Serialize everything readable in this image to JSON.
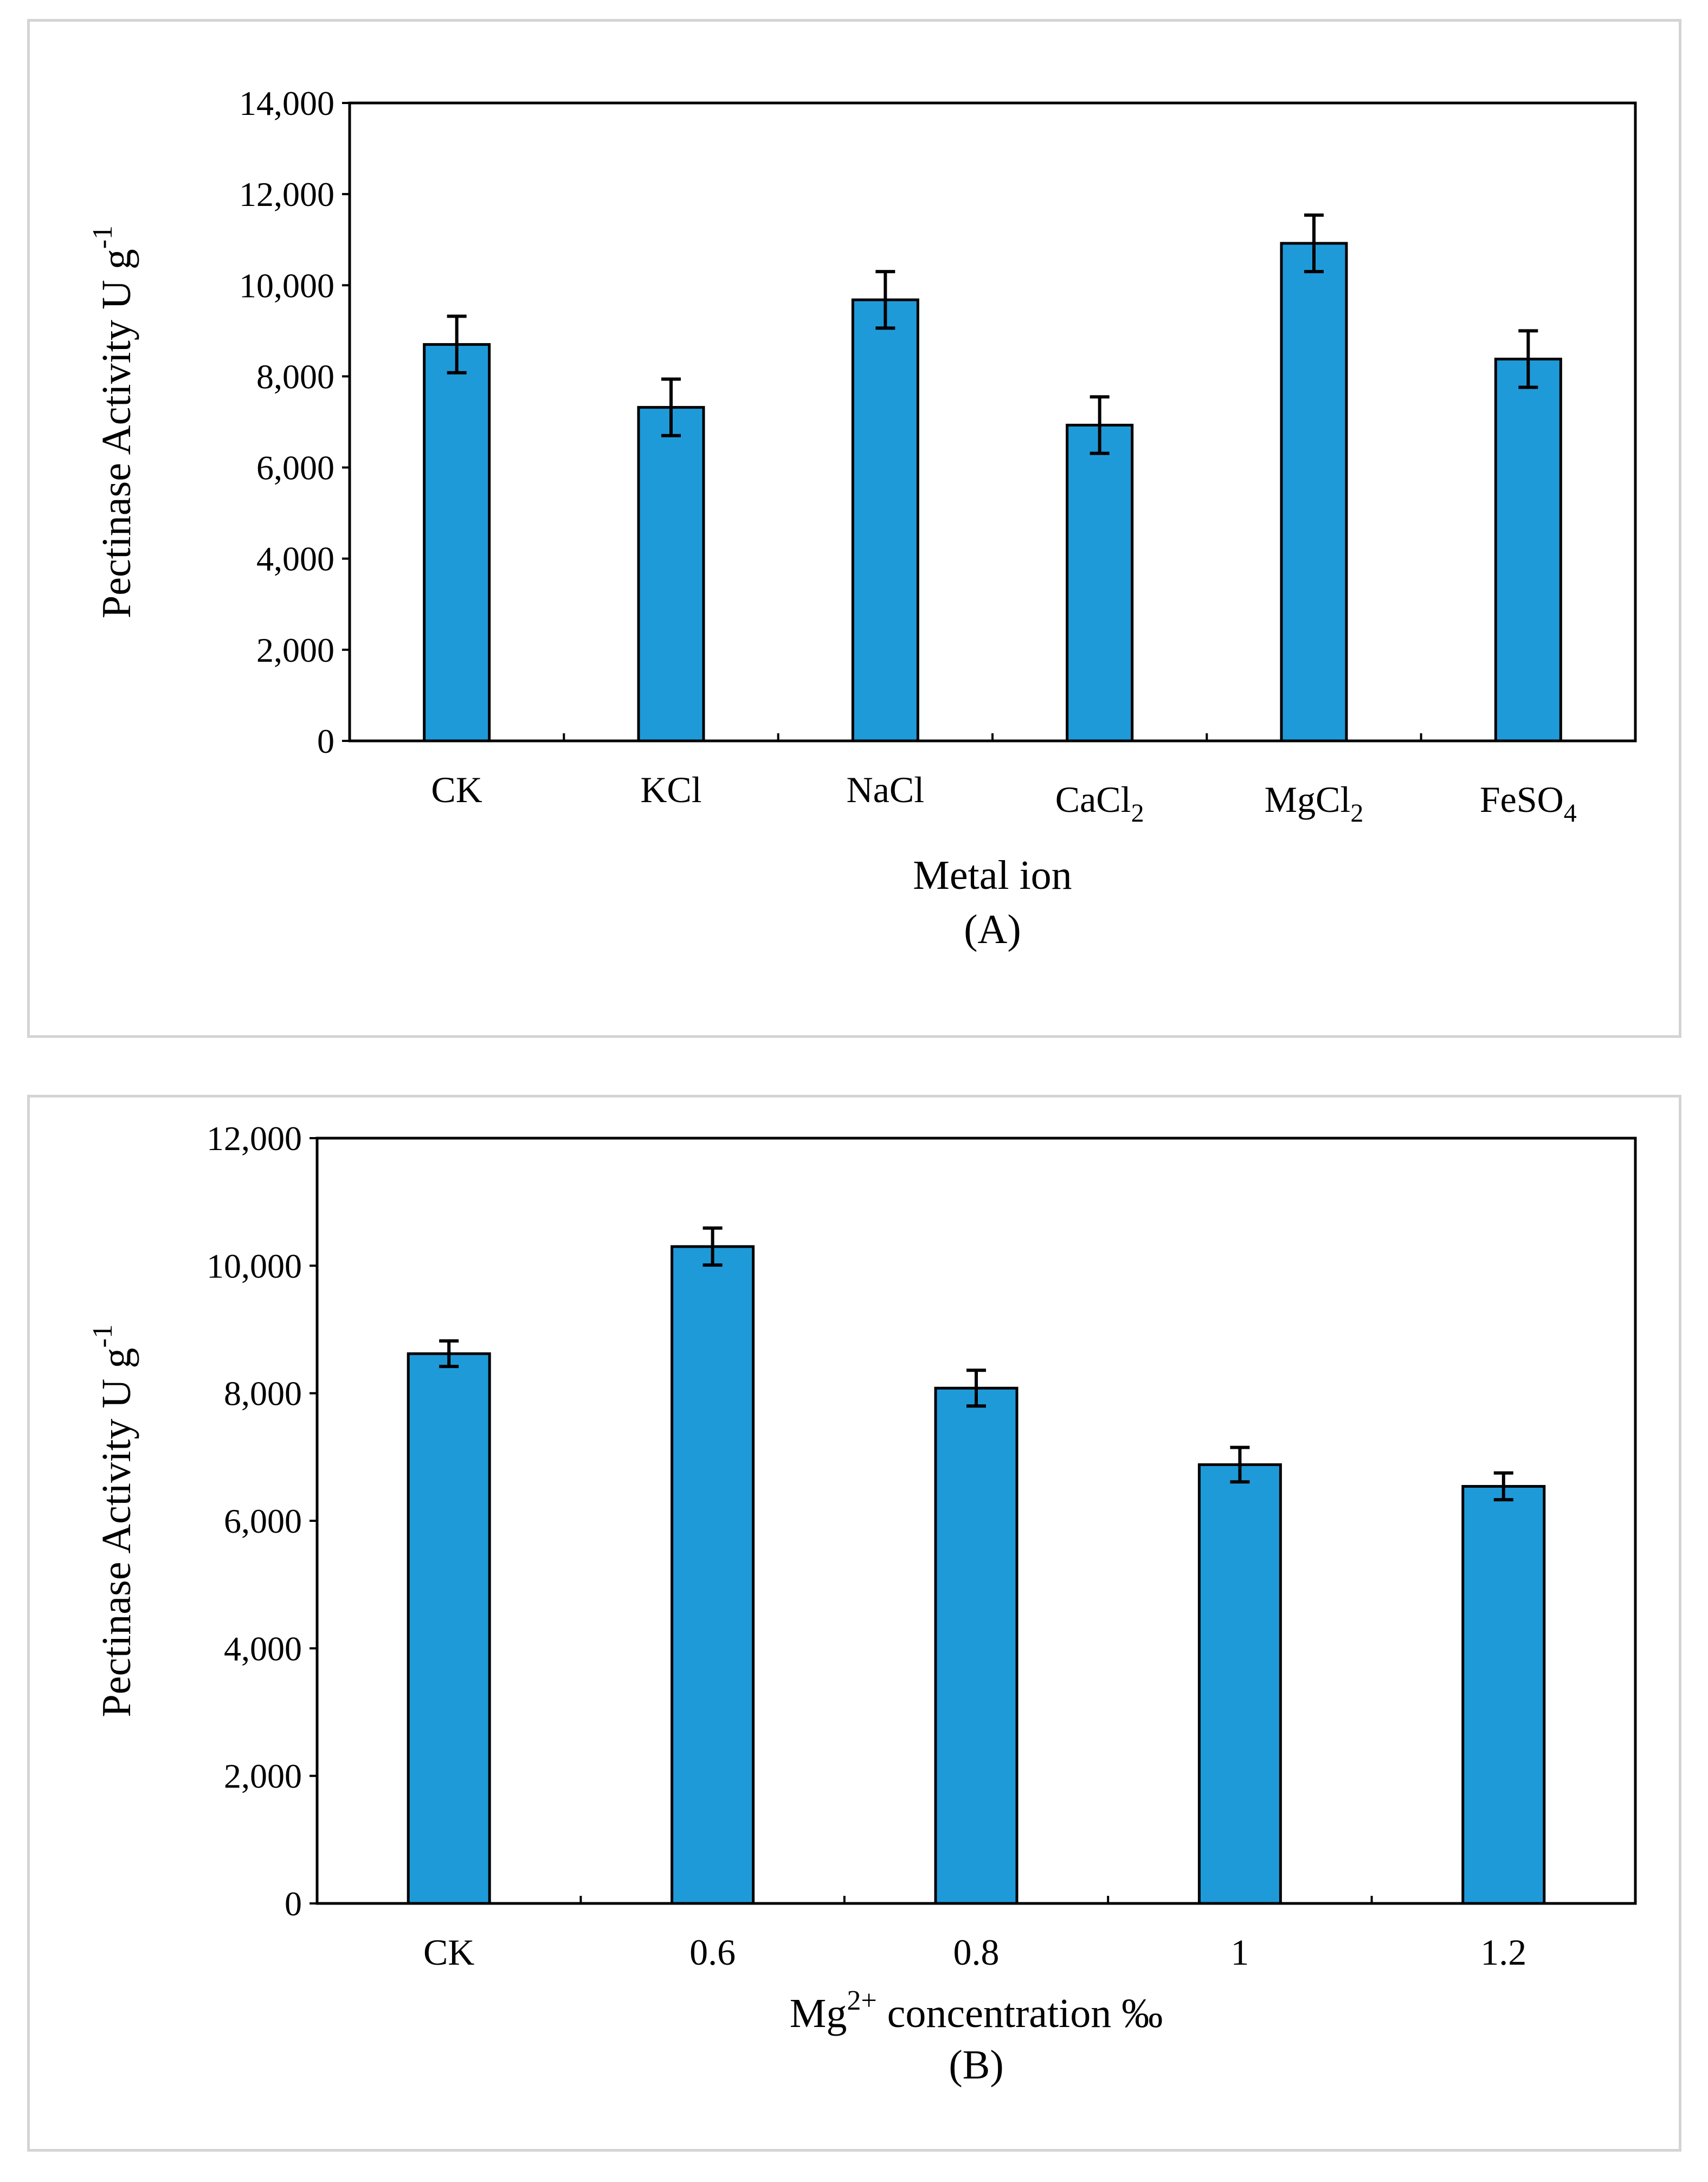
{
  "colors": {
    "bar": "#1f9ad9",
    "bar_stroke": "#000000",
    "axis": "#000000",
    "panel_border": "#d4d4d4"
  },
  "chart_data": [
    {
      "type": "bar",
      "panel_label": "(A)",
      "xlabel": "Metal ion",
      "ylabel": "Pectinase Activity U g",
      "ylabel_sup": "-1",
      "ylim": [
        0,
        14000
      ],
      "yticks": [
        0,
        2000,
        4000,
        6000,
        8000,
        10000,
        12000,
        14000
      ],
      "ytick_labels": [
        "0",
        "2,000",
        "4,000",
        "6,000",
        "8,000",
        "10,000",
        "12,000",
        "14,000"
      ],
      "categories": [
        {
          "base": "CK",
          "sub": ""
        },
        {
          "base": "KCl",
          "sub": ""
        },
        {
          "base": "NaCl",
          "sub": ""
        },
        {
          "base": "CaCl",
          "sub": "2"
        },
        {
          "base": "MgCl",
          "sub": "2"
        },
        {
          "base": "FeSO",
          "sub": "4"
        }
      ],
      "values": [
        8700,
        7320,
        9680,
        6930,
        10920,
        8380
      ],
      "errors": [
        620,
        620,
        620,
        620,
        620,
        620
      ],
      "grid": false,
      "legend": "none"
    },
    {
      "type": "bar",
      "panel_label": "(B)",
      "xlabel_main": "Mg",
      "xlabel_sup": "2+",
      "xlabel_rest": "  concentration ‰",
      "ylabel": "Pectinase Activity U g",
      "ylabel_sup": "-1",
      "ylim": [
        0,
        12000
      ],
      "yticks": [
        0,
        2000,
        4000,
        6000,
        8000,
        10000,
        12000
      ],
      "ytick_labels": [
        "0",
        "2,000",
        "4,000",
        "6,000",
        "8,000",
        "10,000",
        "12,000"
      ],
      "categories": [
        {
          "base": "CK",
          "sub": ""
        },
        {
          "base": "0.6",
          "sub": ""
        },
        {
          "base": "0.8",
          "sub": ""
        },
        {
          "base": "1",
          "sub": ""
        },
        {
          "base": "1.2",
          "sub": ""
        }
      ],
      "values": [
        8620,
        10300,
        8080,
        6880,
        6540
      ],
      "errors": [
        200,
        290,
        280,
        270,
        210
      ],
      "grid": false,
      "legend": "none"
    }
  ]
}
